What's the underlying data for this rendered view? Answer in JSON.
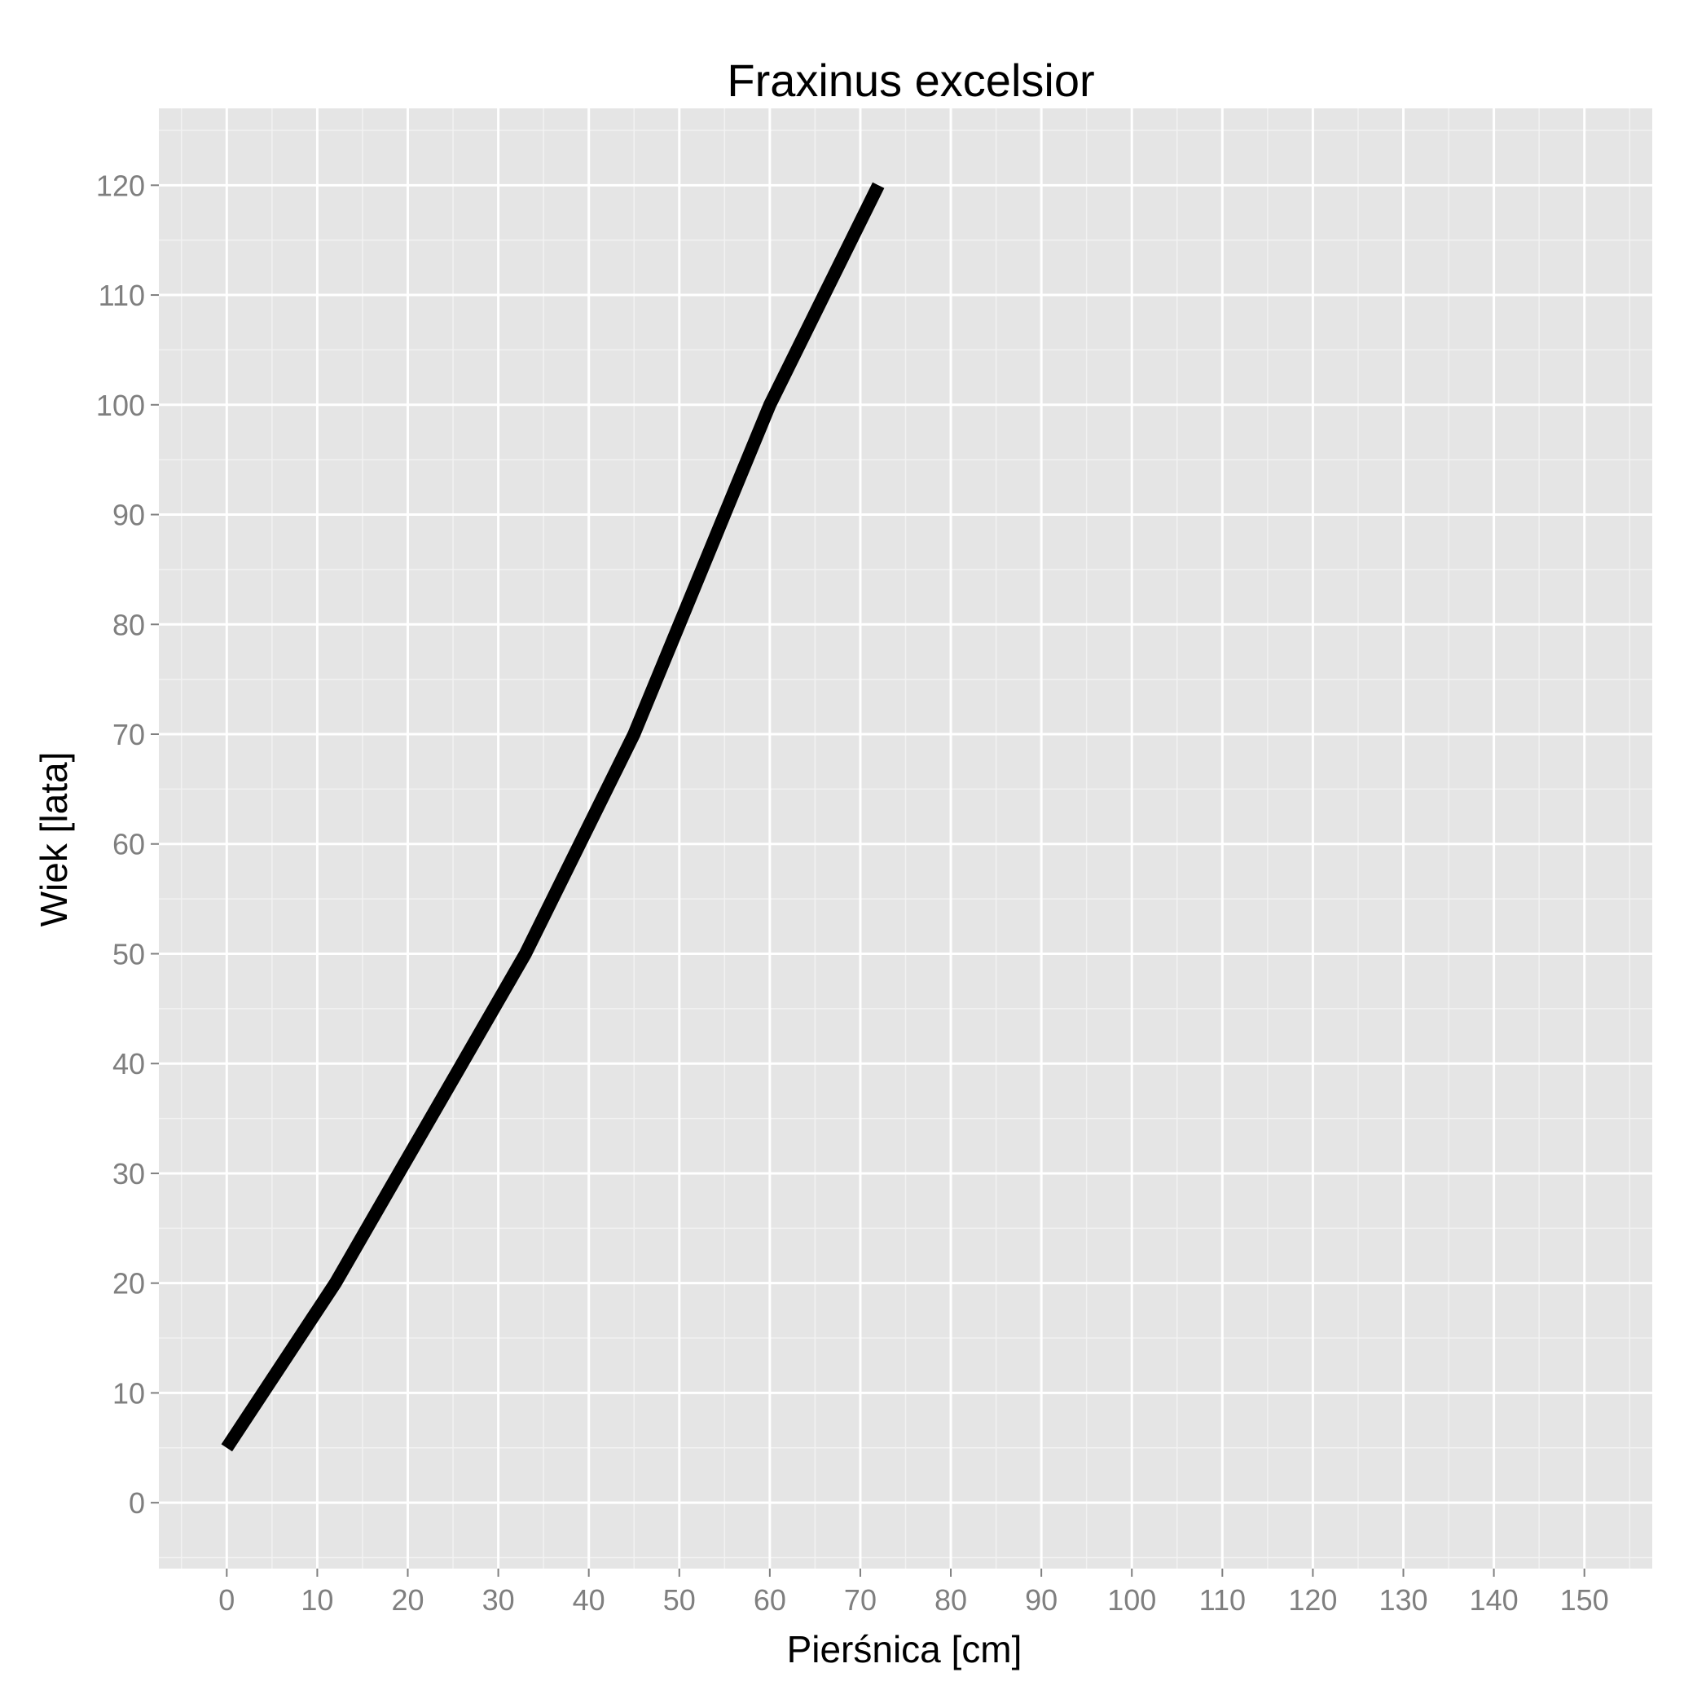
{
  "chart_data": {
    "type": "line",
    "title": "Fraxinus excelsior",
    "xlabel": "Pierśnica [cm]",
    "ylabel": "Wiek [lata]",
    "xlim": [
      -7.5,
      157.5
    ],
    "ylim": [
      -6,
      127
    ],
    "x_ticks": [
      "0",
      "10",
      "20",
      "30",
      "40",
      "50",
      "60",
      "70",
      "80",
      "90",
      "100",
      "110",
      "120",
      "130",
      "140",
      "150"
    ],
    "y_ticks": [
      "0",
      "10",
      "20",
      "30",
      "40",
      "50",
      "60",
      "70",
      "80",
      "90",
      "100",
      "110",
      "120"
    ],
    "grid": true,
    "series": [
      {
        "x": [
          0,
          6,
          12,
          19,
          26,
          33,
          39,
          45,
          50,
          55,
          60,
          66,
          72
        ],
        "y": [
          5,
          12.5,
          20,
          30,
          40,
          50,
          60,
          70,
          80,
          90,
          100,
          110,
          120
        ]
      }
    ],
    "colors": {
      "panel": "#e5e5e5",
      "grid_major": "#ffffff",
      "grid_minor": "#f2f2f2",
      "line": "#000000",
      "tick": "#7f7f7f"
    }
  }
}
